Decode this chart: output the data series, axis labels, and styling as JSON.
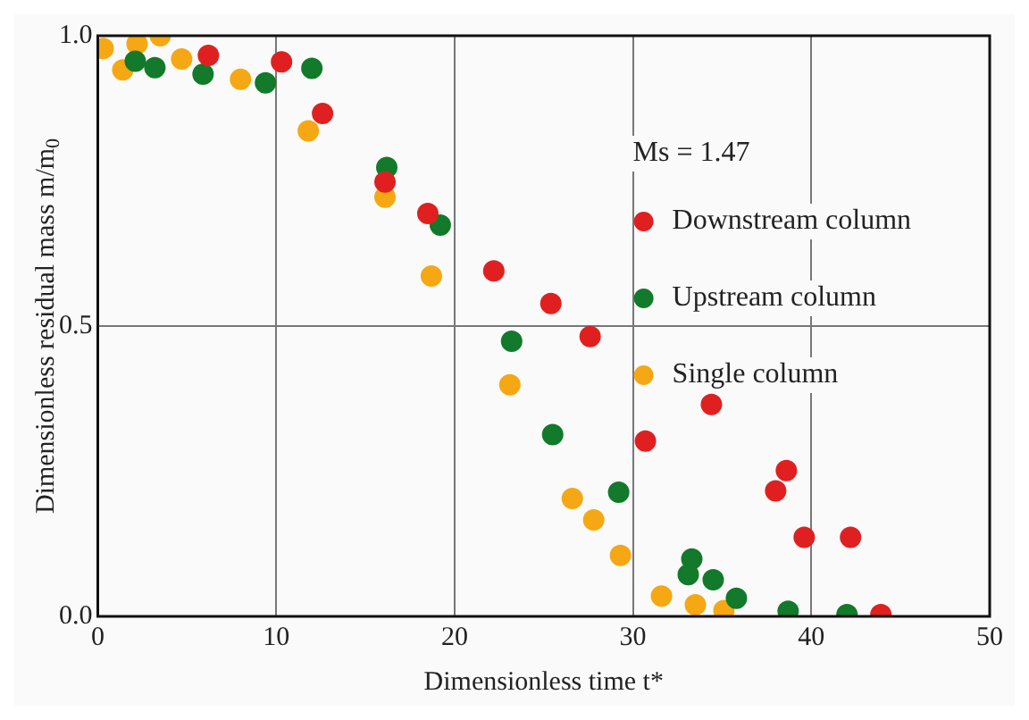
{
  "chart_data": {
    "type": "scatter",
    "xlabel": "Dimensionless time t*",
    "ylabel": "Dimensionless residual mass m/m$_{0}$",
    "annotations": [
      "Ms = 1.47"
    ],
    "xlim": [
      0,
      50
    ],
    "xticks": [
      0,
      10,
      20,
      30,
      40,
      50
    ],
    "ylim": [
      0,
      1
    ],
    "yticks": [
      {
        "value": 0,
        "label": "0.0"
      },
      {
        "value": 0.5,
        "label": "0.5"
      },
      {
        "value": 1,
        "label": "1.0"
      }
    ],
    "grid": true,
    "legend": "top right",
    "marker": "circle",
    "series": [
      {
        "name": "Downstream column",
        "color": "#e02020",
        "x": [
          6.2,
          10.3,
          12.6,
          16.1,
          18.5,
          22.2,
          25.4,
          27.6,
          30.7,
          34.4,
          38.0,
          38.6,
          39.6,
          42.2,
          43.9
        ],
        "values": [
          0.966,
          0.955,
          0.866,
          0.748,
          0.694,
          0.595,
          0.539,
          0.482,
          0.302,
          0.365,
          0.216,
          0.251,
          0.136,
          0.136,
          0.003
        ]
      },
      {
        "name": "Upstream column",
        "color": "#127a2a",
        "x": [
          2.1,
          3.2,
          5.9,
          9.4,
          12.0,
          16.2,
          19.2,
          23.2,
          25.5,
          29.2,
          33.3,
          33.1,
          34.5,
          35.8,
          38.7,
          42.0
        ],
        "values": [
          0.956,
          0.945,
          0.934,
          0.919,
          0.944,
          0.773,
          0.674,
          0.474,
          0.313,
          0.214,
          0.099,
          0.072,
          0.063,
          0.031,
          0.009,
          0.003
        ]
      },
      {
        "name": "Single column",
        "color": "#f5a814",
        "x": [
          0.3,
          1.4,
          2.2,
          3.5,
          4.7,
          8.0,
          11.8,
          16.1,
          18.7,
          23.1,
          26.6,
          27.8,
          29.3,
          31.6,
          33.5,
          35.1
        ],
        "values": [
          0.978,
          0.941,
          0.986,
          1.0,
          0.96,
          0.925,
          0.836,
          0.722,
          0.586,
          0.399,
          0.203,
          0.166,
          0.105,
          0.035,
          0.02,
          0.01
        ]
      }
    ]
  }
}
